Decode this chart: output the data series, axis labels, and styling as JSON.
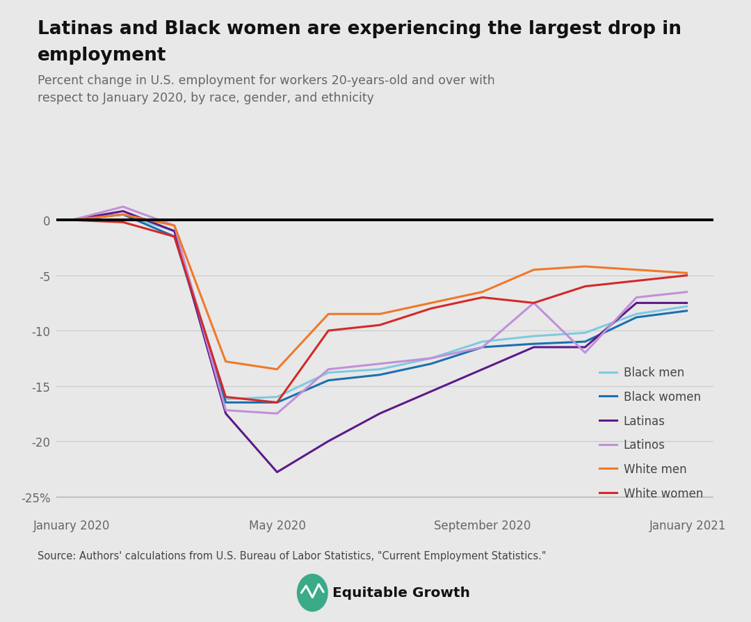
{
  "title_line1": "Latinas and Black women are experiencing the largest drop in",
  "title_line2": "employment",
  "subtitle": "Percent change in U.S. employment for workers 20-years-old and over with\nrespect to January 2020, by race, gender, and ethnicity",
  "source": "Source: Authors' calculations from U.S. Bureau of Labor Statistics, \"Current Employment Statistics.\"",
  "background_color": "#e8e8e8",
  "xtick_labels": [
    "January 2020",
    "May 2020",
    "September 2020",
    "January 2021"
  ],
  "xtick_positions": [
    0,
    4,
    8,
    12
  ],
  "series": {
    "Black men": {
      "color": "#7ecae0",
      "linewidth": 2.2,
      "values": [
        0.0,
        0.5,
        -1.0,
        -16.2,
        -16.0,
        -13.8,
        -13.5,
        -12.5,
        -11.0,
        -10.5,
        -10.2,
        -8.5,
        -7.8
      ]
    },
    "Black women": {
      "color": "#1a70b0",
      "linewidth": 2.2,
      "values": [
        0.0,
        0.5,
        -1.5,
        -16.5,
        -16.5,
        -14.5,
        -14.0,
        -13.0,
        -11.5,
        -11.2,
        -11.0,
        -8.8,
        -8.2
      ]
    },
    "Latinas": {
      "color": "#5c1a8a",
      "linewidth": 2.2,
      "values": [
        0.0,
        0.8,
        -1.0,
        -17.5,
        -22.8,
        -20.0,
        -17.5,
        -15.5,
        -13.5,
        -11.5,
        -11.5,
        -7.5,
        -7.5
      ]
    },
    "Latinos": {
      "color": "#c090d8",
      "linewidth": 2.2,
      "values": [
        0.0,
        1.2,
        -0.5,
        -17.2,
        -17.5,
        -13.5,
        -13.0,
        -12.5,
        -11.5,
        -7.5,
        -12.0,
        -7.0,
        -6.5
      ]
    },
    "White men": {
      "color": "#f07828",
      "linewidth": 2.2,
      "values": [
        0.0,
        0.5,
        -0.5,
        -12.8,
        -13.5,
        -8.5,
        -8.5,
        -7.5,
        -6.5,
        -4.5,
        -4.2,
        -4.5,
        -4.8
      ]
    },
    "White women": {
      "color": "#d42828",
      "linewidth": 2.2,
      "values": [
        0.0,
        -0.2,
        -1.5,
        -16.0,
        -16.5,
        -10.0,
        -9.5,
        -8.0,
        -7.0,
        -7.5,
        -6.0,
        -5.5,
        -5.0
      ]
    }
  },
  "ylim": [
    -26.5,
    2.5
  ],
  "yticks": [
    0,
    -5,
    -10,
    -15,
    -20,
    -25
  ],
  "ytick_labels": [
    "0",
    "-5",
    "-10",
    "-15",
    "-20",
    "-25%"
  ]
}
